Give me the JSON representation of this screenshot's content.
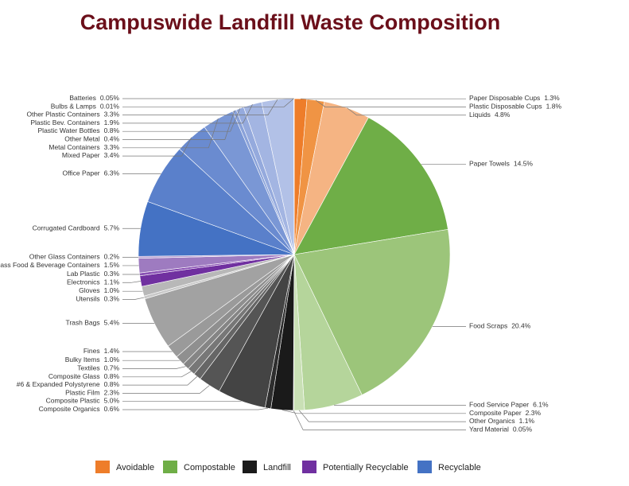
{
  "chart_data": {
    "type": "pie",
    "title": "Campuswide Landfill Waste Composition",
    "categories": [
      "Paper Disposable Cups",
      "Plastic Disposable Cups",
      "Liquids",
      "Paper Towels",
      "Food Scraps",
      "Food Service Paper",
      "Other Organics",
      "Yard Material",
      "Composite Paper",
      "Composite Organics",
      "Composite Plastic",
      "Plastic Film",
      "#6 & Expanded Polystyrene",
      "Composite Glass",
      "Textiles",
      "Bulky Items",
      "Fines",
      "Trash Bags",
      "Utensils",
      "Gloves",
      "Electronics",
      "Lab Plastic",
      "Glass Food & Beverage Containers",
      "Other Glass Containers",
      "Corrugated Cardboard",
      "Office Paper",
      "Mixed Paper",
      "Metal Containers",
      "Other Metal",
      "Plastic Water Bottles",
      "Plastic Bev. Containers",
      "Other Plastic Containers",
      "Bulbs & Lamps",
      "Batteries"
    ],
    "values": [
      1.3,
      1.8,
      4.8,
      14.5,
      20.4,
      6.1,
      1.1,
      0.05,
      2.3,
      0.6,
      5.0,
      2.3,
      0.8,
      0.8,
      0.7,
      1.0,
      1.4,
      5.4,
      0.3,
      1.0,
      1.1,
      0.3,
      1.5,
      0.2,
      5.7,
      6.3,
      3.4,
      3.3,
      0.4,
      0.8,
      1.9,
      3.3,
      0.01,
      0.05
    ],
    "value_labels": [
      "1.3%",
      "1.8%",
      "4.8%",
      "14.5%",
      "20.4%",
      "6.1%",
      "1.1%",
      "0.05%",
      "2.3%",
      "0.6%",
      "5.0%",
      "2.3%",
      "0.8%",
      "0.8%",
      "0.7%",
      "1.0%",
      "1.4%",
      "5.4%",
      "0.3%",
      "1.0%",
      "1.1%",
      "0.3%",
      "1.5%",
      "0.2%",
      "5.7%",
      "6.3%",
      "3.4%",
      "3.3%",
      "0.4%",
      "0.8%",
      "1.9%",
      "3.3%",
      "0.01%",
      "0.05%"
    ],
    "colors": [
      "#ee7d2a",
      "#f09444",
      "#f5b483",
      "#6fae47",
      "#9cc57a",
      "#b5d59b",
      "#c9e0b5",
      "#d6e9c6",
      "#1a1a1a",
      "#2e2e2e",
      "#444444",
      "#555555",
      "#666666",
      "#777777",
      "#858585",
      "#8f8f8f",
      "#9a9a9a",
      "#a2a2a2",
      "#c8c8c8",
      "#b8b8b8",
      "#7030a0",
      "#8a52b4",
      "#9e7bc0",
      "#b9a0d2",
      "#4472c4",
      "#5a80cb",
      "#6a8bd0",
      "#7a97d5",
      "#8aa2d9",
      "#95aadd",
      "#a3b5e2",
      "#b2c1e7",
      "#c0ccec",
      "#cdd6ef"
    ],
    "legend": [
      {
        "name": "Avoidable",
        "color": "#ee7d2a"
      },
      {
        "name": "Compostable",
        "color": "#6fae47"
      },
      {
        "name": "Landfill",
        "color": "#1a1a1a"
      },
      {
        "name": "Potentially Recyclable",
        "color": "#7030a0"
      },
      {
        "name": "Recyclable",
        "color": "#4472c4"
      }
    ]
  }
}
